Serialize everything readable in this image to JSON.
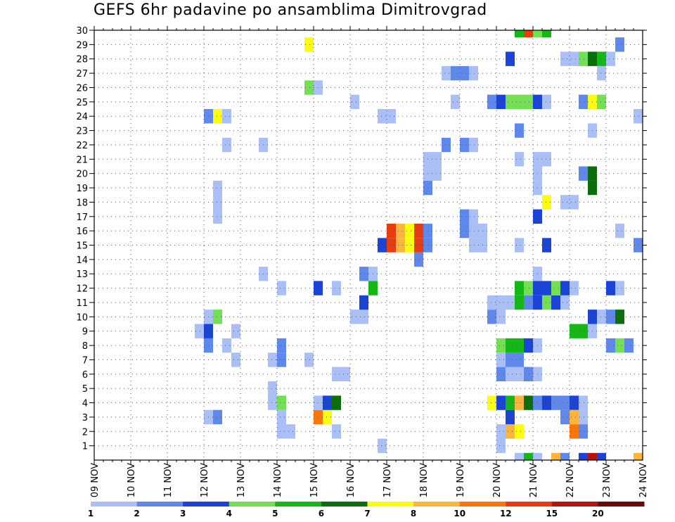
{
  "title": "GEFS 6hr padavine po ansamblima Dimitrovgrad",
  "chart_data": {
    "type": "heatmap",
    "title": "GEFS 6hr padavine po ansamblima Dimitrovgrad",
    "x_labels": [
      "09 NOV",
      "10 NOV",
      "11 NOV",
      "12 NOV",
      "13 NOV",
      "14 NOV",
      "15 NOV",
      "16 NOV",
      "17 NOV",
      "18 NOV",
      "19 NOV",
      "20 NOV",
      "21 NOV",
      "22 NOV",
      "23 NOV",
      "24 NOV"
    ],
    "y_labels": [
      "1",
      "2",
      "3",
      "4",
      "5",
      "6",
      "7",
      "8",
      "9",
      "10",
      "11",
      "12",
      "13",
      "14",
      "15",
      "16",
      "17",
      "18",
      "19",
      "20",
      "21",
      "22",
      "23",
      "24",
      "25",
      "26",
      "27",
      "28",
      "29",
      "30"
    ],
    "ylim": [
      0,
      30
    ],
    "grid": true,
    "legend": {
      "placement": "bottom",
      "labels": [
        "1",
        "2",
        "3",
        "4",
        "5",
        "6",
        "7",
        "8",
        "10",
        "12",
        "15",
        "20"
      ],
      "colors": [
        "#aabff5",
        "#5f88ec",
        "#1a43d8",
        "#72e052",
        "#14b814",
        "#0a6e0a",
        "#fcfc10",
        "#fbb43c",
        "#f7780a",
        "#e83c10",
        "#b4140c",
        "#6e0808"
      ]
    },
    "cells": [
      {
        "date": "12 NOV",
        "t": 0,
        "m": 3,
        "c": 1
      },
      {
        "date": "12 NOV",
        "t": 1,
        "m": 3,
        "c": 2
      },
      {
        "date": "15 NOV",
        "t": 0,
        "m": 3,
        "c": 9
      },
      {
        "date": "15 NOV",
        "t": 1,
        "m": 3,
        "c": 7
      },
      {
        "date": "15 NOV",
        "t": 0,
        "m": 4,
        "c": 1
      },
      {
        "date": "15 NOV",
        "t": 1,
        "m": 4,
        "c": 3
      },
      {
        "date": "15 NOV",
        "t": 2,
        "m": 4,
        "c": 6
      },
      {
        "date": "13 NOV",
        "t": 3,
        "m": 4,
        "c": 1
      },
      {
        "date": "14 NOV",
        "t": 0,
        "m": 4,
        "c": 4
      },
      {
        "date": "13 NOV",
        "t": 3,
        "m": 5,
        "c": 1
      },
      {
        "date": "14 NOV",
        "t": 0,
        "m": 2,
        "c": 1
      },
      {
        "date": "14 NOV",
        "t": 1,
        "m": 2,
        "c": 1
      },
      {
        "date": "14 NOV",
        "t": 0,
        "m": 3,
        "c": 1
      },
      {
        "date": "15 NOV",
        "t": 2,
        "m": 2,
        "c": 1
      },
      {
        "date": "16 NOV",
        "t": 3,
        "m": 1,
        "c": 1
      },
      {
        "date": "15 NOV",
        "t": 2,
        "m": 6,
        "c": 1
      },
      {
        "date": "15 NOV",
        "t": 3,
        "m": 6,
        "c": 1
      },
      {
        "date": "12 NOV",
        "t": 3,
        "m": 7,
        "c": 1
      },
      {
        "date": "13 NOV",
        "t": 3,
        "m": 7,
        "c": 1
      },
      {
        "date": "14 NOV",
        "t": 0,
        "m": 7,
        "c": 2
      },
      {
        "date": "14 NOV",
        "t": 3,
        "m": 7,
        "c": 1
      },
      {
        "date": "12 NOV",
        "t": 0,
        "m": 8,
        "c": 2
      },
      {
        "date": "12 NOV",
        "t": 2,
        "m": 8,
        "c": 1
      },
      {
        "date": "14 NOV",
        "t": 0,
        "m": 8,
        "c": 2
      },
      {
        "date": "11 NOV",
        "t": 3,
        "m": 9,
        "c": 1
      },
      {
        "date": "12 NOV",
        "t": 0,
        "m": 9,
        "c": 3
      },
      {
        "date": "12 NOV",
        "t": 3,
        "m": 9,
        "c": 1
      },
      {
        "date": "12 NOV",
        "t": 0,
        "m": 10,
        "c": 1
      },
      {
        "date": "12 NOV",
        "t": 1,
        "m": 10,
        "c": 4
      },
      {
        "date": "16 NOV",
        "t": 0,
        "m": 10,
        "c": 1
      },
      {
        "date": "16 NOV",
        "t": 1,
        "m": 10,
        "c": 1
      },
      {
        "date": "16 NOV",
        "t": 1,
        "m": 11,
        "c": 3
      },
      {
        "date": "14 NOV",
        "t": 0,
        "m": 12,
        "c": 1
      },
      {
        "date": "15 NOV",
        "t": 0,
        "m": 12,
        "c": 3
      },
      {
        "date": "15 NOV",
        "t": 2,
        "m": 12,
        "c": 1
      },
      {
        "date": "16 NOV",
        "t": 2,
        "m": 12,
        "c": 5
      },
      {
        "date": "13 NOV",
        "t": 2,
        "m": 13,
        "c": 1
      },
      {
        "date": "16 NOV",
        "t": 1,
        "m": 13,
        "c": 2
      },
      {
        "date": "16 NOV",
        "t": 2,
        "m": 13,
        "c": 1
      },
      {
        "date": "17 NOV",
        "t": 3,
        "m": 14,
        "c": 2
      },
      {
        "date": "16 NOV",
        "t": 3,
        "m": 15,
        "c": 3
      },
      {
        "date": "17 NOV",
        "t": 0,
        "m": 15,
        "c": 10
      },
      {
        "date": "17 NOV",
        "t": 1,
        "m": 15,
        "c": 8
      },
      {
        "date": "17 NOV",
        "t": 2,
        "m": 15,
        "c": 7
      },
      {
        "date": "17 NOV",
        "t": 3,
        "m": 15,
        "c": 10
      },
      {
        "date": "18 NOV",
        "t": 0,
        "m": 15,
        "c": 2
      },
      {
        "date": "17 NOV",
        "t": 0,
        "m": 16,
        "c": 10
      },
      {
        "date": "17 NOV",
        "t": 1,
        "m": 16,
        "c": 8
      },
      {
        "date": "17 NOV",
        "t": 2,
        "m": 16,
        "c": 7
      },
      {
        "date": "17 NOV",
        "t": 3,
        "m": 16,
        "c": 10
      },
      {
        "date": "18 NOV",
        "t": 0,
        "m": 16,
        "c": 2
      },
      {
        "date": "19 NOV",
        "t": 1,
        "m": 15,
        "c": 1
      },
      {
        "date": "19 NOV",
        "t": 2,
        "m": 15,
        "c": 1
      },
      {
        "date": "19 NOV",
        "t": 1,
        "m": 16,
        "c": 1
      },
      {
        "date": "19 NOV",
        "t": 2,
        "m": 16,
        "c": 1
      },
      {
        "date": "19 NOV",
        "t": 0,
        "m": 16,
        "c": 2
      },
      {
        "date": "19 NOV",
        "t": 1,
        "m": 17,
        "c": 1
      },
      {
        "date": "19 NOV",
        "t": 0,
        "m": 17,
        "c": 2
      },
      {
        "date": "12 NOV",
        "t": 1,
        "m": 17,
        "c": 1
      },
      {
        "date": "12 NOV",
        "t": 1,
        "m": 18,
        "c": 1
      },
      {
        "date": "12 NOV",
        "t": 1,
        "m": 19,
        "c": 1
      },
      {
        "date": "18 NOV",
        "t": 0,
        "m": 19,
        "c": 2
      },
      {
        "date": "18 NOV",
        "t": 0,
        "m": 20,
        "c": 1
      },
      {
        "date": "18 NOV",
        "t": 1,
        "m": 20,
        "c": 1
      },
      {
        "date": "18 NOV",
        "t": 0,
        "m": 21,
        "c": 1
      },
      {
        "date": "18 NOV",
        "t": 1,
        "m": 21,
        "c": 1
      },
      {
        "date": "18 NOV",
        "t": 2,
        "m": 22,
        "c": 2
      },
      {
        "date": "19 NOV",
        "t": 0,
        "m": 22,
        "c": 2
      },
      {
        "date": "19 NOV",
        "t": 1,
        "m": 22,
        "c": 1
      },
      {
        "date": "12 NOV",
        "t": 2,
        "m": 22,
        "c": 1
      },
      {
        "date": "13 NOV",
        "t": 2,
        "m": 22,
        "c": 1
      },
      {
        "date": "12 NOV",
        "t": 0,
        "m": 24,
        "c": 2
      },
      {
        "date": "12 NOV",
        "t": 1,
        "m": 24,
        "c": 7
      },
      {
        "date": "12 NOV",
        "t": 2,
        "m": 24,
        "c": 1
      },
      {
        "date": "16 NOV",
        "t": 3,
        "m": 24,
        "c": 1
      },
      {
        "date": "17 NOV",
        "t": 0,
        "m": 24,
        "c": 1
      },
      {
        "date": "16 NOV",
        "t": 0,
        "m": 25,
        "c": 1
      },
      {
        "date": "18 NOV",
        "t": 3,
        "m": 25,
        "c": 1
      },
      {
        "date": "19 NOV",
        "t": 3,
        "m": 25,
        "c": 2
      },
      {
        "date": "14 NOV",
        "t": 3,
        "m": 26,
        "c": 4
      },
      {
        "date": "15 NOV",
        "t": 0,
        "m": 26,
        "c": 1
      },
      {
        "date": "18 NOV",
        "t": 2,
        "m": 27,
        "c": 1
      },
      {
        "date": "18 NOV",
        "t": 3,
        "m": 27,
        "c": 2
      },
      {
        "date": "19 NOV",
        "t": 0,
        "m": 27,
        "c": 2
      },
      {
        "date": "19 NOV",
        "t": 1,
        "m": 27,
        "c": 1
      },
      {
        "date": "14 NOV",
        "t": 3,
        "m": 29,
        "c": 7
      },
      {
        "date": "20 NOV",
        "t": 0,
        "m": 1,
        "c": 1
      },
      {
        "date": "20 NOV",
        "t": 0,
        "m": 2,
        "c": 1
      },
      {
        "date": "20 NOV",
        "t": 1,
        "m": 2,
        "c": 8
      },
      {
        "date": "20 NOV",
        "t": 2,
        "m": 2,
        "c": 7
      },
      {
        "date": "20 NOV",
        "t": 1,
        "m": 3,
        "c": 3
      },
      {
        "date": "19 NOV",
        "t": 3,
        "m": 4,
        "c": 7
      },
      {
        "date": "20 NOV",
        "t": 0,
        "m": 4,
        "c": 3
      },
      {
        "date": "20 NOV",
        "t": 1,
        "m": 4,
        "c": 5
      },
      {
        "date": "20 NOV",
        "t": 2,
        "m": 4,
        "c": 8
      },
      {
        "date": "20 NOV",
        "t": 3,
        "m": 4,
        "c": 6
      },
      {
        "date": "21 NOV",
        "t": 0,
        "m": 4,
        "c": 2
      },
      {
        "date": "21 NOV",
        "t": 1,
        "m": 4,
        "c": 3
      },
      {
        "date": "21 NOV",
        "t": 2,
        "m": 4,
        "c": 2
      },
      {
        "date": "21 NOV",
        "t": 3,
        "m": 4,
        "c": 2
      },
      {
        "date": "22 NOV",
        "t": 0,
        "m": 4,
        "c": 3
      },
      {
        "date": "22 NOV",
        "t": 1,
        "m": 4,
        "c": 1
      },
      {
        "date": "20 NOV",
        "t": 0,
        "m": 6,
        "c": 2
      },
      {
        "date": "20 NOV",
        "t": 1,
        "m": 6,
        "c": 1
      },
      {
        "date": "20 NOV",
        "t": 2,
        "m": 6,
        "c": 1
      },
      {
        "date": "20 NOV",
        "t": 3,
        "m": 6,
        "c": 2
      },
      {
        "date": "21 NOV",
        "t": 0,
        "m": 6,
        "c": 1
      },
      {
        "date": "20 NOV",
        "t": 0,
        "m": 7,
        "c": 1
      },
      {
        "date": "20 NOV",
        "t": 1,
        "m": 7,
        "c": 2
      },
      {
        "date": "20 NOV",
        "t": 2,
        "m": 7,
        "c": 2
      },
      {
        "date": "20 NOV",
        "t": 0,
        "m": 8,
        "c": 4
      },
      {
        "date": "20 NOV",
        "t": 1,
        "m": 8,
        "c": 5
      },
      {
        "date": "20 NOV",
        "t": 2,
        "m": 8,
        "c": 5
      },
      {
        "date": "20 NOV",
        "t": 3,
        "m": 8,
        "c": 3
      },
      {
        "date": "21 NOV",
        "t": 0,
        "m": 8,
        "c": 1
      },
      {
        "date": "19 NOV",
        "t": 3,
        "m": 10,
        "c": 2
      },
      {
        "date": "20 NOV",
        "t": 0,
        "m": 10,
        "c": 1
      },
      {
        "date": "19 NOV",
        "t": 3,
        "m": 11,
        "c": 1
      },
      {
        "date": "20 NOV",
        "t": 0,
        "m": 11,
        "c": 1
      },
      {
        "date": "20 NOV",
        "t": 1,
        "m": 11,
        "c": 1
      },
      {
        "date": "20 NOV",
        "t": 2,
        "m": 11,
        "c": 5
      },
      {
        "date": "20 NOV",
        "t": 3,
        "m": 11,
        "c": 2
      },
      {
        "date": "21 NOV",
        "t": 0,
        "m": 11,
        "c": 3
      },
      {
        "date": "21 NOV",
        "t": 1,
        "m": 11,
        "c": 4
      },
      {
        "date": "21 NOV",
        "t": 2,
        "m": 11,
        "c": 3
      },
      {
        "date": "21 NOV",
        "t": 3,
        "m": 11,
        "c": 1
      },
      {
        "date": "20 NOV",
        "t": 2,
        "m": 12,
        "c": 5
      },
      {
        "date": "20 NOV",
        "t": 3,
        "m": 12,
        "c": 4
      },
      {
        "date": "21 NOV",
        "t": 0,
        "m": 12,
        "c": 3
      },
      {
        "date": "21 NOV",
        "t": 1,
        "m": 12,
        "c": 3
      },
      {
        "date": "21 NOV",
        "t": 2,
        "m": 12,
        "c": 4
      },
      {
        "date": "21 NOV",
        "t": 3,
        "m": 12,
        "c": 3
      },
      {
        "date": "22 NOV",
        "t": 0,
        "m": 12,
        "c": 1
      },
      {
        "date": "21 NOV",
        "t": 0,
        "m": 13,
        "c": 1
      },
      {
        "date": "20 NOV",
        "t": 2,
        "m": 15,
        "c": 1
      },
      {
        "date": "21 NOV",
        "t": 1,
        "m": 15,
        "c": 3
      },
      {
        "date": "21 NOV",
        "t": 0,
        "m": 17,
        "c": 3
      },
      {
        "date": "21 NOV",
        "t": 1,
        "m": 18,
        "c": 7
      },
      {
        "date": "21 NOV",
        "t": 3,
        "m": 18,
        "c": 1
      },
      {
        "date": "21 NOV",
        "t": 0,
        "m": 19,
        "c": 1
      },
      {
        "date": "21 NOV",
        "t": 0,
        "m": 20,
        "c": 1
      },
      {
        "date": "20 NOV",
        "t": 2,
        "m": 21,
        "c": 1
      },
      {
        "date": "21 NOV",
        "t": 0,
        "m": 21,
        "c": 1
      },
      {
        "date": "21 NOV",
        "t": 1,
        "m": 21,
        "c": 1
      },
      {
        "date": "20 NOV",
        "t": 2,
        "m": 23,
        "c": 2
      },
      {
        "date": "20 NOV",
        "t": 0,
        "m": 25,
        "c": 3
      },
      {
        "date": "20 NOV",
        "t": 1,
        "m": 25,
        "c": 4
      },
      {
        "date": "20 NOV",
        "t": 2,
        "m": 25,
        "c": 4
      },
      {
        "date": "20 NOV",
        "t": 3,
        "m": 25,
        "c": 4
      },
      {
        "date": "21 NOV",
        "t": 0,
        "m": 25,
        "c": 3
      },
      {
        "date": "21 NOV",
        "t": 1,
        "m": 25,
        "c": 1
      },
      {
        "date": "20 NOV",
        "t": 1,
        "m": 28,
        "c": 3
      },
      {
        "date": "20 NOV",
        "t": 2,
        "m": 30,
        "c": 5
      },
      {
        "date": "20 NOV",
        "t": 3,
        "m": 30,
        "c": 10
      },
      {
        "date": "21 NOV",
        "t": 0,
        "m": 30,
        "c": 4
      },
      {
        "date": "21 NOV",
        "t": 1,
        "m": 30,
        "c": 5
      },
      {
        "date": "22 NOV",
        "t": 0,
        "m": 2,
        "c": 9
      },
      {
        "date": "22 NOV",
        "t": 1,
        "m": 2,
        "c": 2
      },
      {
        "date": "21 NOV",
        "t": 3,
        "m": 3,
        "c": 2
      },
      {
        "date": "22 NOV",
        "t": 0,
        "m": 3,
        "c": 8
      },
      {
        "date": "22 NOV",
        "t": 1,
        "m": 3,
        "c": 1
      },
      {
        "date": "22 NOV",
        "t": 0,
        "m": 9,
        "c": 5
      },
      {
        "date": "22 NOV",
        "t": 1,
        "m": 9,
        "c": 5
      },
      {
        "date": "22 NOV",
        "t": 2,
        "m": 9,
        "c": 1
      },
      {
        "date": "22 NOV",
        "t": 2,
        "m": 10,
        "c": 3
      },
      {
        "date": "22 NOV",
        "t": 3,
        "m": 10,
        "c": 1
      },
      {
        "date": "23 NOV",
        "t": 0,
        "m": 10,
        "c": 2
      },
      {
        "date": "23 NOV",
        "t": 1,
        "m": 10,
        "c": 6
      },
      {
        "date": "23 NOV",
        "t": 0,
        "m": 12,
        "c": 3
      },
      {
        "date": "23 NOV",
        "t": 1,
        "m": 12,
        "c": 1
      },
      {
        "date": "23 NOV",
        "t": 3,
        "m": 15,
        "c": 2
      },
      {
        "date": "23 NOV",
        "t": 1,
        "m": 16,
        "c": 1
      },
      {
        "date": "22 NOV",
        "t": 0,
        "m": 18,
        "c": 1
      },
      {
        "date": "22 NOV",
        "t": 1,
        "m": 20,
        "c": 2
      },
      {
        "date": "22 NOV",
        "t": 2,
        "m": 20,
        "c": 6
      },
      {
        "date": "22 NOV",
        "t": 2,
        "m": 19,
        "c": 6
      },
      {
        "date": "22 NOV",
        "t": 2,
        "m": 23,
        "c": 1
      },
      {
        "date": "23 NOV",
        "t": 3,
        "m": 24,
        "c": 1
      },
      {
        "date": "22 NOV",
        "t": 1,
        "m": 25,
        "c": 2
      },
      {
        "date": "22 NOV",
        "t": 2,
        "m": 25,
        "c": 7
      },
      {
        "date": "22 NOV",
        "t": 3,
        "m": 25,
        "c": 4
      },
      {
        "date": "22 NOV",
        "t": 3,
        "m": 27,
        "c": 1
      },
      {
        "date": "21 NOV",
        "t": 3,
        "m": 28,
        "c": 1
      },
      {
        "date": "22 NOV",
        "t": 0,
        "m": 28,
        "c": 1
      },
      {
        "date": "22 NOV",
        "t": 1,
        "m": 28,
        "c": 4
      },
      {
        "date": "22 NOV",
        "t": 2,
        "m": 28,
        "c": 6
      },
      {
        "date": "22 NOV",
        "t": 3,
        "m": 28,
        "c": 5
      },
      {
        "date": "23 NOV",
        "t": 0,
        "m": 28,
        "c": 1
      },
      {
        "date": "23 NOV",
        "t": 1,
        "m": 29,
        "c": 2
      },
      {
        "date": "23 NOV",
        "t": 0,
        "m": 8,
        "c": 2
      },
      {
        "date": "23 NOV",
        "t": 1,
        "m": 8,
        "c": 4
      },
      {
        "date": "23 NOV",
        "t": 2,
        "m": 8,
        "c": 2
      },
      {
        "date": "20 NOV",
        "t": 2,
        "m": 0,
        "c": 1
      },
      {
        "date": "20 NOV",
        "t": 3,
        "m": 0,
        "c": 5
      },
      {
        "date": "21 NOV",
        "t": 0,
        "m": 0,
        "c": 1
      },
      {
        "date": "21 NOV",
        "t": 2,
        "m": 0,
        "c": 8
      },
      {
        "date": "21 NOV",
        "t": 3,
        "m": 0,
        "c": 2
      },
      {
        "date": "22 NOV",
        "t": 1,
        "m": 0,
        "c": 3
      },
      {
        "date": "22 NOV",
        "t": 2,
        "m": 0,
        "c": 11
      },
      {
        "date": "22 NOV",
        "t": 3,
        "m": 0,
        "c": 3
      },
      {
        "date": "23 NOV",
        "t": 3,
        "m": 0,
        "c": 8
      }
    ]
  }
}
